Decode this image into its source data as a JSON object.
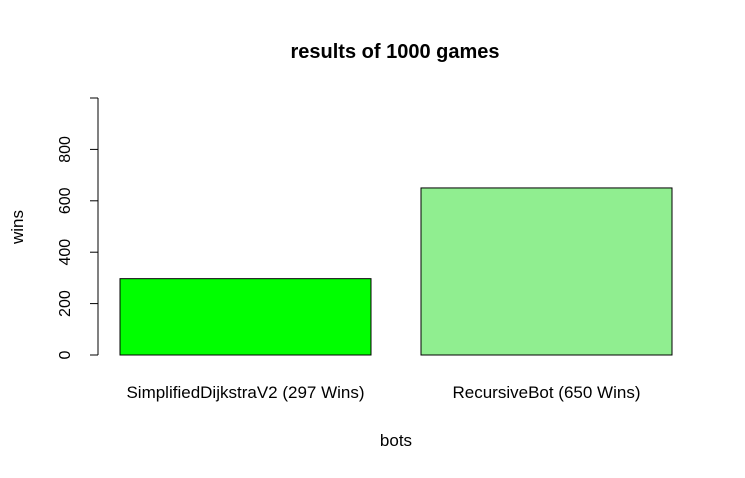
{
  "chart_data": {
    "type": "bar",
    "title": "results of 1000 games",
    "xlabel": "bots",
    "ylabel": "wins",
    "categories": [
      "SimplifiedDijkstraV2 (297 Wins)",
      "RecursiveBot (650 Wins)"
    ],
    "values": [
      297,
      650
    ],
    "colors": [
      "#00ff00",
      "#90ee90"
    ],
    "ylim": [
      0,
      1000
    ],
    "yticks": [
      0,
      200,
      400,
      600,
      800
    ],
    "grid": false,
    "legend": "none"
  }
}
